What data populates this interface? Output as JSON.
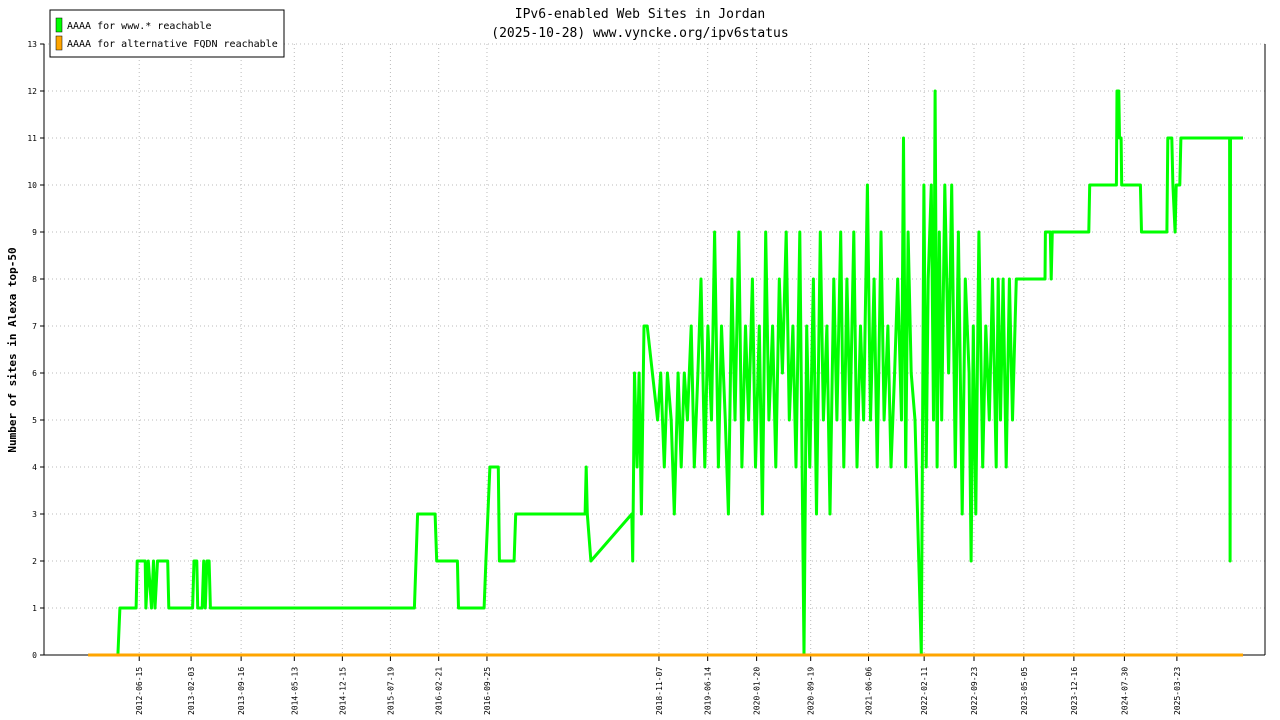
{
  "chart_data": {
    "type": "line",
    "title": "IPv6-enabled Web Sites in Jordan",
    "subtitle": "(2025-10-28) www.vyncke.org/ipv6status",
    "y_label": "Number of sites in Alexa top-50",
    "xlim": [
      "2011-04-14",
      "2026-04-23"
    ],
    "xticks": [
      "2012-06-15",
      "2013-02-03",
      "2013-09-16",
      "2014-05-13",
      "2014-12-15",
      "2015-07-19",
      "2016-02-21",
      "2016-09-25",
      "2018-11-07",
      "2019-06-14",
      "2020-01-20",
      "2020-09-19",
      "2021-06-06",
      "2022-02-11",
      "2022-09-23",
      "2023-05-05",
      "2023-12-16",
      "2024-07-30",
      "2025-03-23"
    ],
    "ylim": [
      0,
      13
    ],
    "yticks": [
      0,
      1,
      2,
      3,
      4,
      5,
      6,
      7,
      8,
      9,
      10,
      11,
      12,
      13
    ],
    "grid": true,
    "legend": "upper left",
    "series": [
      {
        "name": "AAAA for www.* reachable",
        "color": "#00ff00",
        "x": [
          "2012-03-11",
          "2012-03-20",
          "2012-06-01",
          "2012-06-06",
          "2012-07-12",
          "2012-07-15",
          "2012-07-26",
          "2012-08-09",
          "2012-08-18",
          "2012-08-25",
          "2012-09-05",
          "2012-10-21",
          "2012-10-26",
          "2013-02-10",
          "2013-02-16",
          "2013-03-01",
          "2013-03-05",
          "2013-03-25",
          "2013-04-01",
          "2013-04-08",
          "2013-04-15",
          "2013-04-25",
          "2013-05-01",
          "2015-11-04",
          "2015-11-18",
          "2016-02-05",
          "2016-02-12",
          "2016-05-15",
          "2016-05-20",
          "2016-09-12",
          "2016-09-20",
          "2016-10-08",
          "2016-11-15",
          "2016-11-20",
          "2017-01-25",
          "2017-02-01",
          "2017-12-10",
          "2017-12-15",
          "2017-12-20",
          "2018-01-05",
          "2018-07-08",
          "2018-07-12",
          "2018-07-20",
          "2018-08-01",
          "2018-08-10",
          "2018-08-20",
          "2018-09-01",
          "2018-09-15",
          "2018-11-01",
          "2018-11-15",
          "2018-12-01",
          "2018-12-15",
          "2019-01-01",
          "2019-01-15",
          "2019-02-01",
          "2019-02-15",
          "2019-03-01",
          "2019-03-15",
          "2019-04-01",
          "2019-04-15",
          "2019-05-01",
          "2019-05-15",
          "2019-06-01",
          "2019-06-15",
          "2019-07-01",
          "2019-07-15",
          "2019-08-01",
          "2019-08-15",
          "2019-09-01",
          "2019-09-15",
          "2019-10-01",
          "2019-10-15",
          "2019-11-01",
          "2019-11-15",
          "2019-12-01",
          "2019-12-15",
          "2020-01-01",
          "2020-01-15",
          "2020-02-01",
          "2020-02-15",
          "2020-03-01",
          "2020-03-15",
          "2020-04-01",
          "2020-04-15",
          "2020-05-01",
          "2020-05-15",
          "2020-06-01",
          "2020-06-15",
          "2020-07-01",
          "2020-07-15",
          "2020-08-01",
          "2020-08-20",
          "2020-09-01",
          "2020-09-15",
          "2020-10-01",
          "2020-10-15",
          "2020-11-01",
          "2020-11-15",
          "2020-12-01",
          "2020-12-15",
          "2021-01-01",
          "2021-01-15",
          "2021-02-01",
          "2021-02-15",
          "2021-03-01",
          "2021-03-15",
          "2021-04-01",
          "2021-04-15",
          "2021-05-01",
          "2021-05-15",
          "2021-06-01",
          "2021-06-15",
          "2021-07-01",
          "2021-07-15",
          "2021-08-01",
          "2021-08-15",
          "2021-09-01",
          "2021-09-15",
          "2021-10-01",
          "2021-10-15",
          "2021-11-01",
          "2021-11-10",
          "2021-11-20",
          "2021-12-01",
          "2021-12-15",
          "2022-01-01",
          "2022-01-29",
          "2022-02-10",
          "2022-02-20",
          "2022-03-01",
          "2022-03-15",
          "2022-03-25",
          "2022-04-01",
          "2022-04-10",
          "2022-04-20",
          "2022-05-01",
          "2022-05-15",
          "2022-06-01",
          "2022-06-15",
          "2022-07-01",
          "2022-07-15",
          "2022-08-01",
          "2022-08-15",
          "2022-09-01",
          "2022-09-10",
          "2022-09-20",
          "2022-10-01",
          "2022-10-15",
          "2022-11-01",
          "2022-11-15",
          "2022-12-01",
          "2022-12-15",
          "2023-01-01",
          "2023-01-10",
          "2023-01-20",
          "2023-02-01",
          "2023-02-15",
          "2023-03-01",
          "2023-03-15",
          "2023-04-01",
          "2023-04-15",
          "2023-08-08",
          "2023-08-10",
          "2023-09-01",
          "2023-09-05",
          "2023-09-10",
          "2024-02-21",
          "2024-02-25",
          "2024-06-24",
          "2024-06-27",
          "2024-07-05",
          "2024-07-08",
          "2024-07-15",
          "2024-07-18",
          "2024-10-10",
          "2024-10-15",
          "2025-02-06",
          "2025-02-10",
          "2025-02-28",
          "2025-03-05",
          "2025-03-15",
          "2025-03-20",
          "2025-04-05",
          "2025-04-10",
          "2025-11-15",
          "2025-11-17",
          "2025-11-19",
          "2026-01-14"
        ],
        "values": [
          0,
          1,
          1,
          2,
          2,
          1,
          2,
          1,
          2,
          1,
          2,
          2,
          1,
          1,
          2,
          2,
          1,
          1,
          2,
          1,
          2,
          2,
          1,
          1,
          3,
          3,
          2,
          2,
          1,
          1,
          2,
          4,
          4,
          2,
          2,
          3,
          3,
          4,
          3,
          2,
          3,
          2,
          6,
          4,
          6,
          3,
          7,
          7,
          5,
          6,
          4,
          6,
          5,
          3,
          6,
          4,
          6,
          5,
          7,
          4,
          6,
          8,
          4,
          7,
          5,
          9,
          4,
          7,
          5,
          3,
          8,
          5,
          9,
          4,
          7,
          5,
          8,
          4,
          7,
          3,
          9,
          5,
          7,
          4,
          8,
          6,
          9,
          5,
          7,
          4,
          9,
          0,
          7,
          4,
          8,
          3,
          9,
          5,
          7,
          3,
          8,
          5,
          9,
          4,
          8,
          5,
          9,
          4,
          7,
          5,
          10,
          5,
          8,
          4,
          9,
          5,
          7,
          4,
          6,
          8,
          5,
          11,
          4,
          9,
          6,
          5,
          0,
          10,
          4,
          8,
          10,
          5,
          12,
          4,
          9,
          5,
          10,
          6,
          10,
          4,
          9,
          3,
          8,
          6,
          2,
          7,
          3,
          9,
          4,
          7,
          5,
          8,
          4,
          8,
          5,
          8,
          4,
          8,
          5,
          8,
          8,
          8,
          9,
          9,
          8,
          9,
          9,
          10,
          10,
          12,
          12,
          11,
          11,
          10,
          10,
          9,
          9,
          11,
          11,
          10,
          9,
          10,
          10,
          11,
          11,
          2,
          11,
          11
        ]
      },
      {
        "name": "AAAA for alternative FQDN reachable",
        "color": "#ffa500",
        "x": [
          "2011-10-29",
          "2026-01-14"
        ],
        "values": [
          0,
          0
        ]
      }
    ]
  }
}
